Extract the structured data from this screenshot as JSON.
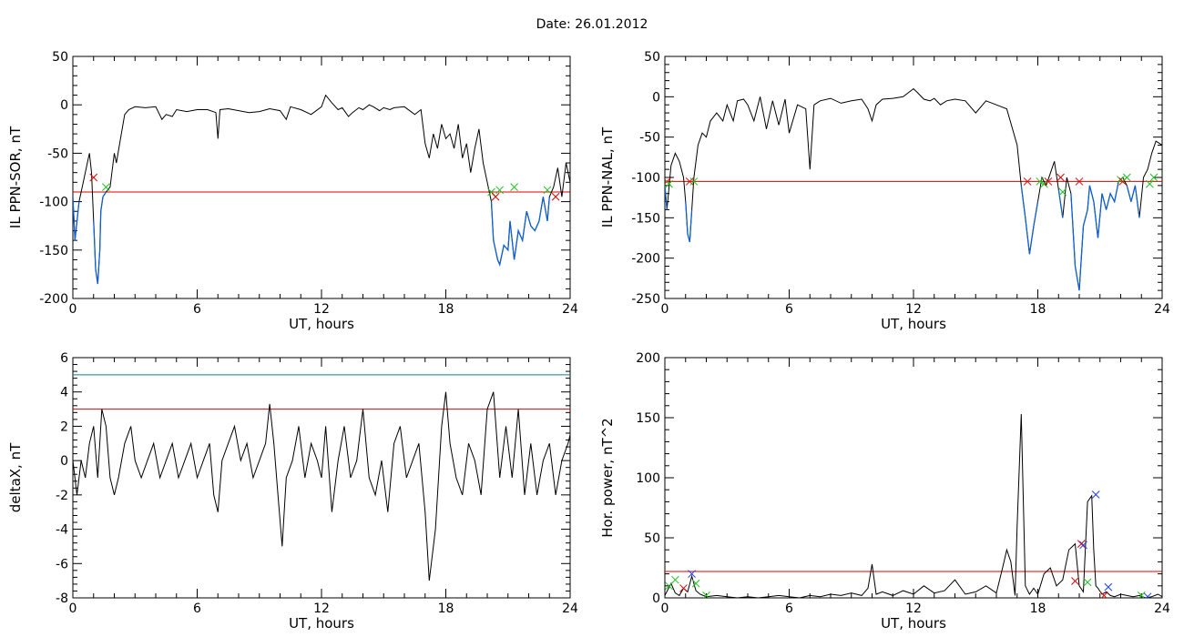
{
  "page": {
    "title": "Date:  26.01.2012"
  },
  "chart_data": [
    {
      "id": "sor",
      "type": "line",
      "xlabel": "UT, hours",
      "ylabel": "IL PPN-SOR, nT",
      "xlim": [
        0,
        24
      ],
      "ylim": [
        -200,
        50
      ],
      "xticks": [
        0,
        6,
        12,
        18,
        24
      ],
      "yticks": [
        -200,
        -150,
        -100,
        -50,
        0,
        50
      ],
      "grid": false,
      "threshold": {
        "value": -90,
        "color": "#e00000"
      },
      "colors": {
        "main": "#000000",
        "below": "#1060d0"
      },
      "series": [
        {
          "x": [
            0,
            0.1,
            0.3,
            0.5,
            0.7,
            0.8,
            0.9,
            1.0,
            1.1,
            1.2,
            1.3,
            1.35,
            1.45,
            1.6,
            1.8,
            2.0,
            2.1,
            2.3,
            2.5,
            2.7,
            3.0,
            3.5,
            4.0,
            4.3,
            4.5,
            4.8,
            5.0,
            5.5,
            6.0,
            6.5,
            6.9,
            7.0,
            7.1,
            7.5,
            8.0,
            8.5,
            9.0,
            9.5,
            10.0,
            10.3,
            10.5,
            11.0,
            11.5,
            12.0,
            12.2,
            12.5,
            12.8,
            13.0,
            13.3,
            13.5,
            13.8,
            14.0,
            14.3,
            14.5,
            14.8,
            15.0,
            15.3,
            15.5,
            16.0,
            16.5,
            16.8,
            17.0,
            17.2,
            17.4,
            17.6,
            17.8,
            18.0,
            18.2,
            18.4,
            18.6,
            18.8,
            19.0,
            19.2,
            19.4,
            19.6,
            19.8,
            20.0,
            20.2,
            20.3,
            20.5,
            20.6,
            20.8,
            21.0,
            21.1,
            21.3,
            21.5,
            21.7,
            21.9,
            22.1,
            22.3,
            22.5,
            22.7,
            22.9,
            23.0,
            23.2,
            23.4,
            23.6,
            23.8,
            24.0
          ],
          "values": [
            -95,
            -140,
            -100,
            -80,
            -60,
            -50,
            -70,
            -120,
            -170,
            -185,
            -150,
            -110,
            -95,
            -90,
            -85,
            -50,
            -60,
            -35,
            -10,
            -5,
            -2,
            -3,
            -2,
            -15,
            -10,
            -12,
            -5,
            -7,
            -5,
            -5,
            -8,
            -35,
            -5,
            -4,
            -6,
            -8,
            -7,
            -4,
            -6,
            -15,
            -2,
            -5,
            -10,
            -2,
            10,
            2,
            -5,
            -3,
            -12,
            -8,
            -3,
            -5,
            0,
            -2,
            -6,
            -3,
            -5,
            -3,
            -2,
            -10,
            -5,
            -40,
            -55,
            -30,
            -45,
            -20,
            -35,
            -30,
            -45,
            -20,
            -55,
            -40,
            -70,
            -45,
            -25,
            -60,
            -80,
            -100,
            -140,
            -160,
            -165,
            -145,
            -150,
            -120,
            -160,
            -130,
            -140,
            -110,
            -125,
            -130,
            -120,
            -95,
            -120,
            -95,
            -85,
            -65,
            -95,
            -60,
            -80
          ]
        }
      ],
      "markers": [
        {
          "x": 1.0,
          "y": -75,
          "color": "#e00000"
        },
        {
          "x": 1.6,
          "y": -85,
          "color": "#20c020"
        },
        {
          "x": 20.2,
          "y": -90,
          "color": "#20c020"
        },
        {
          "x": 20.4,
          "y": -95,
          "color": "#e00000"
        },
        {
          "x": 20.6,
          "y": -88,
          "color": "#20c020"
        },
        {
          "x": 21.3,
          "y": -85,
          "color": "#20c020"
        },
        {
          "x": 22.9,
          "y": -88,
          "color": "#20c020"
        },
        {
          "x": 23.3,
          "y": -95,
          "color": "#e00000"
        }
      ]
    },
    {
      "id": "nal",
      "type": "line",
      "xlabel": "UT, hours",
      "ylabel": "IL PPN-NAL, nT",
      "xlim": [
        0,
        24
      ],
      "ylim": [
        -250,
        50
      ],
      "xticks": [
        0,
        6,
        12,
        18,
        24
      ],
      "yticks": [
        -250,
        -200,
        -150,
        -100,
        -50,
        0,
        50
      ],
      "grid": false,
      "threshold": {
        "value": -105,
        "color": "#e00000"
      },
      "colors": {
        "main": "#000000",
        "below": "#1060d0"
      },
      "series": [
        {
          "x": [
            0,
            0.1,
            0.3,
            0.5,
            0.7,
            0.9,
            1.0,
            1.1,
            1.2,
            1.3,
            1.4,
            1.6,
            1.8,
            2.0,
            2.2,
            2.5,
            2.8,
            3.0,
            3.3,
            3.5,
            3.8,
            4.0,
            4.3,
            4.6,
            4.9,
            5.2,
            5.5,
            5.8,
            6.0,
            6.4,
            6.8,
            7.0,
            7.2,
            7.5,
            8.0,
            8.5,
            9.0,
            9.5,
            9.8,
            10.0,
            10.2,
            10.5,
            11.0,
            11.5,
            12.0,
            12.2,
            12.5,
            12.8,
            13.0,
            13.3,
            13.6,
            14.0,
            14.5,
            15.0,
            15.5,
            16.0,
            16.5,
            17.0,
            17.2,
            17.4,
            17.6,
            17.8,
            18.0,
            18.2,
            18.4,
            18.6,
            18.8,
            19.0,
            19.2,
            19.4,
            19.6,
            19.8,
            20.0,
            20.2,
            20.4,
            20.5,
            20.7,
            20.9,
            21.1,
            21.3,
            21.5,
            21.7,
            21.9,
            22.1,
            22.3,
            22.5,
            22.7,
            22.9,
            23.1,
            23.3,
            23.5,
            23.7,
            24.0
          ],
          "values": [
            -110,
            -140,
            -85,
            -70,
            -80,
            -100,
            -130,
            -170,
            -180,
            -140,
            -100,
            -60,
            -45,
            -50,
            -30,
            -20,
            -30,
            -10,
            -30,
            -5,
            -3,
            -10,
            -30,
            0,
            -40,
            -5,
            -35,
            -3,
            -45,
            -10,
            -15,
            -90,
            -10,
            -5,
            -2,
            -8,
            -5,
            -3,
            -15,
            -30,
            -10,
            -3,
            -2,
            0,
            10,
            5,
            -3,
            -5,
            -2,
            -10,
            -5,
            -3,
            -5,
            -20,
            -5,
            -10,
            -15,
            -60,
            -110,
            -150,
            -195,
            -160,
            -130,
            -100,
            -110,
            -95,
            -80,
            -115,
            -150,
            -100,
            -120,
            -210,
            -240,
            -160,
            -140,
            -110,
            -130,
            -175,
            -120,
            -140,
            -120,
            -130,
            -105,
            -100,
            -110,
            -130,
            -110,
            -150,
            -100,
            -90,
            -70,
            -55,
            -60
          ]
        }
      ],
      "markers": [
        {
          "x": 0.1,
          "y": -105,
          "color": "#e00000"
        },
        {
          "x": 0.2,
          "y": -108,
          "color": "#20c020"
        },
        {
          "x": 1.2,
          "y": -105,
          "color": "#e00000"
        },
        {
          "x": 1.4,
          "y": -105,
          "color": "#20c020"
        },
        {
          "x": 17.5,
          "y": -105,
          "color": "#e00000"
        },
        {
          "x": 18.1,
          "y": -105,
          "color": "#20c020"
        },
        {
          "x": 18.3,
          "y": -108,
          "color": "#20c020"
        },
        {
          "x": 18.5,
          "y": -105,
          "color": "#e00000"
        },
        {
          "x": 19.1,
          "y": -100,
          "color": "#e00000"
        },
        {
          "x": 19.2,
          "y": -118,
          "color": "#20c020"
        },
        {
          "x": 20.0,
          "y": -105,
          "color": "#e00000"
        },
        {
          "x": 22.0,
          "y": -103,
          "color": "#20c020"
        },
        {
          "x": 22.1,
          "y": -105,
          "color": "#e00000"
        },
        {
          "x": 22.3,
          "y": -100,
          "color": "#20c020"
        },
        {
          "x": 23.4,
          "y": -108,
          "color": "#20c020"
        },
        {
          "x": 23.6,
          "y": -100,
          "color": "#20c020"
        }
      ]
    },
    {
      "id": "deltax",
      "type": "line",
      "xlabel": "UT, hours",
      "ylabel": "deltaX, nT",
      "xlim": [
        0,
        24
      ],
      "ylim": [
        -8,
        6
      ],
      "xticks": [
        0,
        6,
        12,
        18,
        24
      ],
      "yticks": [
        -8,
        -6,
        -4,
        -2,
        0,
        2,
        4,
        6
      ],
      "grid": false,
      "hlines": [
        {
          "value": 5,
          "color": "#108080"
        },
        {
          "value": 3,
          "color": "#e00000"
        }
      ],
      "colors": {
        "main": "#000000"
      },
      "series": [
        {
          "x": [
            0,
            0.2,
            0.4,
            0.6,
            0.8,
            1.0,
            1.2,
            1.4,
            1.6,
            1.8,
            2.0,
            2.2,
            2.5,
            2.8,
            3.0,
            3.3,
            3.6,
            3.9,
            4.2,
            4.5,
            4.8,
            5.1,
            5.4,
            5.7,
            6.0,
            6.3,
            6.6,
            6.8,
            7.0,
            7.2,
            7.5,
            7.8,
            8.1,
            8.4,
            8.7,
            9.0,
            9.3,
            9.5,
            9.7,
            9.9,
            10.1,
            10.3,
            10.6,
            10.9,
            11.2,
            11.5,
            11.8,
            12.0,
            12.2,
            12.5,
            12.8,
            13.1,
            13.4,
            13.7,
            14.0,
            14.3,
            14.6,
            14.9,
            15.2,
            15.5,
            15.8,
            16.1,
            16.4,
            16.7,
            17.0,
            17.2,
            17.5,
            17.8,
            18.0,
            18.2,
            18.5,
            18.8,
            19.1,
            19.4,
            19.7,
            20.0,
            20.3,
            20.6,
            20.9,
            21.2,
            21.5,
            21.8,
            22.1,
            22.4,
            22.7,
            23.0,
            23.3,
            23.6,
            23.9,
            24.0
          ],
          "values": [
            0,
            -2,
            0,
            -1,
            1,
            2,
            -1,
            3,
            2,
            -1,
            -2,
            -1,
            1,
            2,
            0,
            -1,
            0,
            1,
            -1,
            0,
            1,
            -1,
            0,
            1,
            -1,
            0,
            1,
            -2,
            -3,
            0,
            1,
            2,
            0,
            1,
            -1,
            0,
            1,
            3.3,
            1,
            -2,
            -5,
            -1,
            0,
            2,
            -1,
            1,
            0,
            -1,
            2,
            -3,
            0,
            2,
            -1,
            0,
            3,
            -1,
            -2,
            0,
            -3,
            1,
            2,
            -1,
            0,
            1,
            -3,
            -7,
            -4,
            2,
            4,
            1,
            -1,
            -2,
            1,
            0,
            -2,
            3,
            4,
            -1,
            2,
            -1,
            3,
            -2,
            1,
            -2,
            0,
            1,
            -2,
            0,
            1,
            1.5
          ]
        }
      ],
      "markers": []
    },
    {
      "id": "power",
      "type": "line",
      "xlabel": "UT, hours",
      "ylabel": "Hor. power, nT^2",
      "xlim": [
        0,
        24
      ],
      "ylim": [
        0,
        200
      ],
      "xticks": [
        0,
        6,
        12,
        18,
        24
      ],
      "yticks": [
        0,
        50,
        100,
        150,
        200
      ],
      "grid": false,
      "threshold": {
        "value": 22,
        "color": "#e00000"
      },
      "colors": {
        "main": "#000000"
      },
      "series": [
        {
          "x": [
            0,
            0.3,
            0.5,
            0.7,
            0.9,
            1.1,
            1.3,
            1.5,
            1.7,
            2.0,
            2.5,
            3.0,
            3.5,
            4.0,
            4.5,
            5.0,
            5.5,
            6.0,
            6.5,
            7.0,
            7.5,
            8.0,
            8.5,
            9.0,
            9.5,
            9.8,
            10.0,
            10.2,
            10.5,
            11.0,
            11.5,
            12.0,
            12.5,
            13.0,
            13.5,
            14.0,
            14.5,
            15.0,
            15.5,
            16.0,
            16.3,
            16.5,
            16.7,
            16.9,
            17.0,
            17.2,
            17.3,
            17.4,
            17.6,
            17.8,
            18.0,
            18.3,
            18.6,
            18.9,
            19.2,
            19.5,
            19.8,
            20.0,
            20.2,
            20.4,
            20.6,
            20.7,
            20.8,
            20.9,
            21.1,
            21.3,
            21.5,
            21.7,
            22.0,
            22.3,
            22.6,
            22.9,
            23.2,
            23.5,
            23.8,
            24.0
          ],
          "values": [
            2,
            12,
            4,
            2,
            8,
            5,
            18,
            6,
            3,
            1,
            2,
            1,
            0,
            1,
            0,
            1,
            2,
            1,
            0,
            2,
            1,
            3,
            2,
            4,
            2,
            8,
            28,
            3,
            5,
            2,
            6,
            3,
            10,
            4,
            6,
            15,
            3,
            5,
            10,
            4,
            25,
            40,
            30,
            2,
            60,
            153,
            80,
            10,
            3,
            8,
            3,
            20,
            25,
            10,
            15,
            40,
            45,
            10,
            5,
            80,
            85,
            40,
            10,
            8,
            3,
            5,
            2,
            1,
            3,
            2,
            1,
            2,
            0,
            1,
            3,
            1
          ]
        }
      ],
      "markers": [
        {
          "x": 0.2,
          "y": 10,
          "color": "#20c020"
        },
        {
          "x": 0.5,
          "y": 15,
          "color": "#20c020"
        },
        {
          "x": 0.9,
          "y": 8,
          "color": "#e00000"
        },
        {
          "x": 1.3,
          "y": 20,
          "color": "#2040e0"
        },
        {
          "x": 1.5,
          "y": 12,
          "color": "#20c020"
        },
        {
          "x": 2.0,
          "y": 2,
          "color": "#20c020"
        },
        {
          "x": 19.8,
          "y": 14,
          "color": "#e00000"
        },
        {
          "x": 20.1,
          "y": 45,
          "color": "#e00000"
        },
        {
          "x": 20.2,
          "y": 44,
          "color": "#2040e0"
        },
        {
          "x": 20.4,
          "y": 13,
          "color": "#20c020"
        },
        {
          "x": 20.8,
          "y": 86,
          "color": "#2040e0"
        },
        {
          "x": 21.2,
          "y": 2,
          "color": "#e00000"
        },
        {
          "x": 21.4,
          "y": 9,
          "color": "#2040e0"
        },
        {
          "x": 23.0,
          "y": 2,
          "color": "#20c020"
        },
        {
          "x": 23.3,
          "y": 1,
          "color": "#2040e0"
        }
      ]
    }
  ]
}
